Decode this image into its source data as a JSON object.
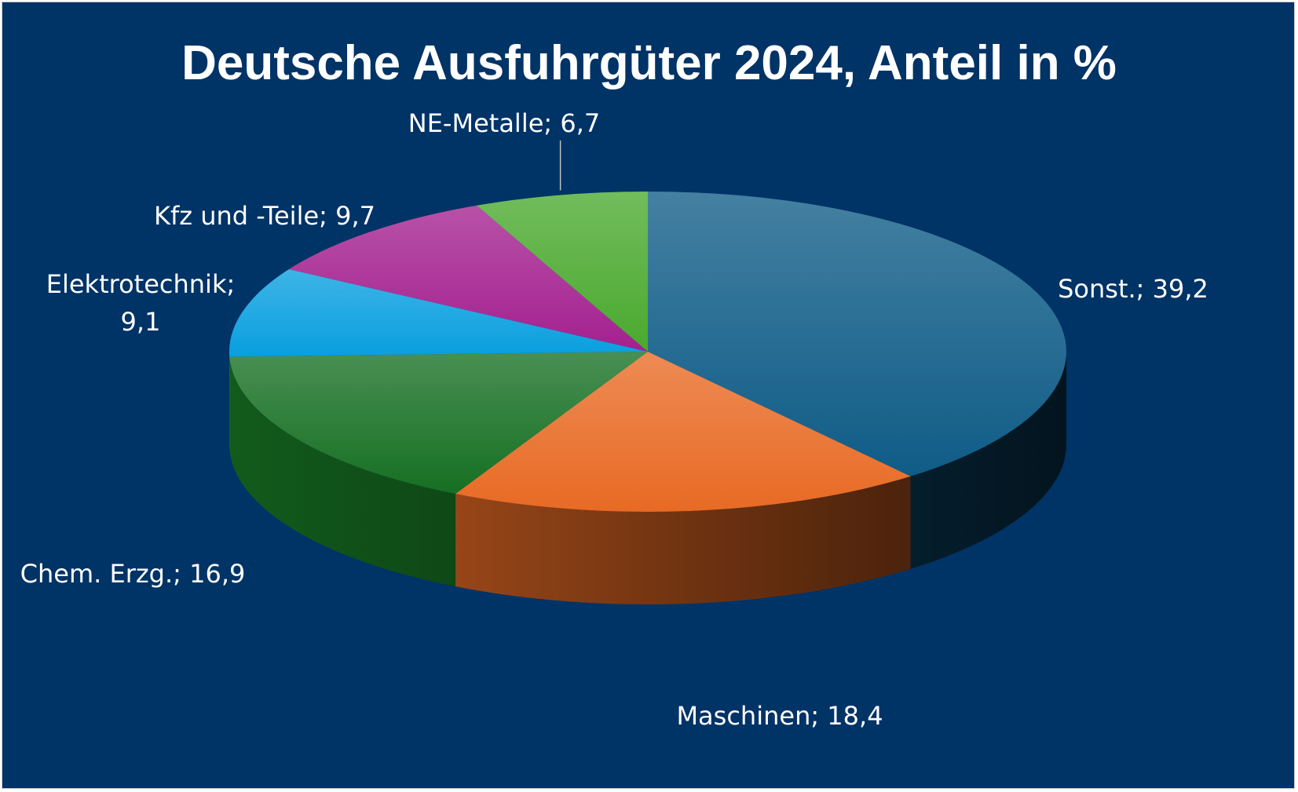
{
  "chart_data": {
    "type": "pie",
    "title": "Deutsche Ausfuhrgüter 2024, Anteil in %",
    "slices": [
      {
        "label": "Sonst.",
        "value": 39.2,
        "display": "Sonst.; 39,2",
        "color": "#0F5C87"
      },
      {
        "label": "Maschinen",
        "value": 18.4,
        "display": "Maschinen; 18,4",
        "color": "#E86A24"
      },
      {
        "label": "Chem. Erzg.",
        "value": 16.9,
        "display": "Chem. Erzg.; 16,9",
        "color": "#166F22"
      },
      {
        "label": "Elektrotechnik",
        "value": 9.1,
        "display": "Elektrotechnik;\n9,1",
        "color": "#089FDF"
      },
      {
        "label": "Kfz und -Teile",
        "value": 9.7,
        "display": "Kfz und -Teile; 9,7",
        "color": "#A4208F"
      },
      {
        "label": "NE-Metalle",
        "value": 6.7,
        "display": "NE-Metalle; 6,7",
        "color": "#4AA92E"
      }
    ],
    "legend": "none",
    "style": "3d-pie",
    "background": "#003366"
  }
}
